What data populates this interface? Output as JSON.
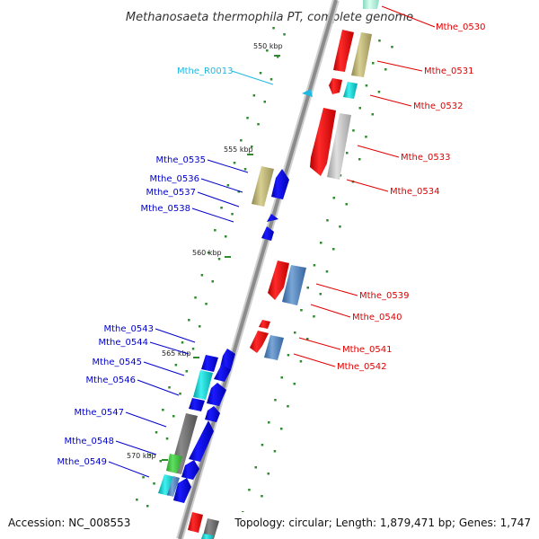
{
  "title": "Methanosaeta thermophila PT, complete genome",
  "footer": {
    "accession": "Accession: NC_008553",
    "summary": "Topology: circular; Length: 1,879,471 bp; Genes: 1,747"
  },
  "scale_ticks": [
    "550 kbp",
    "555 kbp",
    "560 kbp",
    "565 kbp",
    "570 kbp"
  ],
  "colors": {
    "backbone": "#9a9a9a",
    "dot": "#2e8b2e",
    "strand_plus_label": "#e00000",
    "strand_minus_label": "#0000cc",
    "rna_label": "#20b8e0"
  },
  "gene_labels": {
    "rna": [
      {
        "id": "Mthe_R0013"
      }
    ],
    "right": [
      {
        "id": "Mthe_0530"
      },
      {
        "id": "Mthe_0531"
      },
      {
        "id": "Mthe_0532"
      },
      {
        "id": "Mthe_0533"
      },
      {
        "id": "Mthe_0534"
      },
      {
        "id": "Mthe_0539"
      },
      {
        "id": "Mthe_0540"
      },
      {
        "id": "Mthe_0541"
      },
      {
        "id": "Mthe_0542"
      }
    ],
    "left": [
      {
        "id": "Mthe_0535"
      },
      {
        "id": "Mthe_0536"
      },
      {
        "id": "Mthe_0537"
      },
      {
        "id": "Mthe_0538"
      },
      {
        "id": "Mthe_0543"
      },
      {
        "id": "Mthe_0544"
      },
      {
        "id": "Mthe_0545"
      },
      {
        "id": "Mthe_0546"
      },
      {
        "id": "Mthe_0547"
      },
      {
        "id": "Mthe_0548"
      },
      {
        "id": "Mthe_0549"
      }
    ]
  }
}
